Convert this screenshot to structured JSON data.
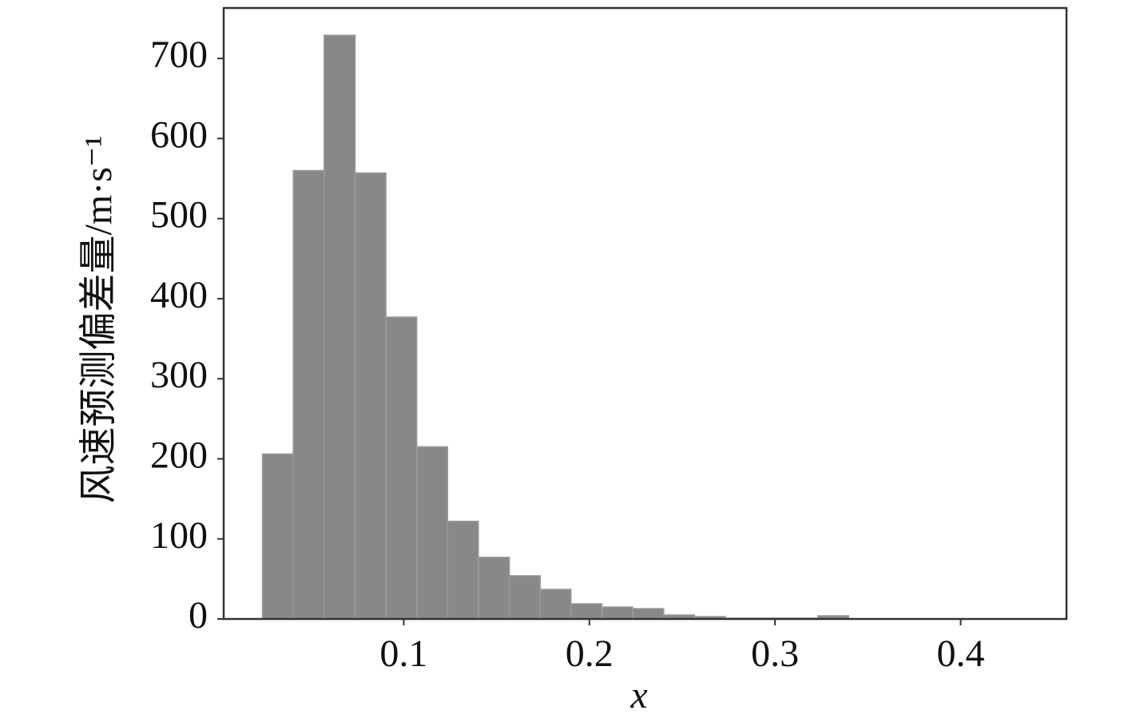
{
  "chart_data": {
    "type": "histogram",
    "x_label": "x",
    "y_label": "风速预测偏差量/m·s⁻¹",
    "bins": [
      0.0239,
      0.0405,
      0.0571,
      0.0738,
      0.0904,
      0.107,
      0.1236,
      0.1402,
      0.1569,
      0.1735,
      0.1901,
      0.2067,
      0.2233,
      0.24,
      0.2566,
      0.2732,
      0.2898,
      0.3064,
      0.3231,
      0.3397
    ],
    "values": [
      206,
      560,
      729,
      557,
      377,
      215,
      122,
      77,
      54,
      37,
      19,
      15,
      13,
      5,
      3,
      1,
      1,
      1,
      4
    ],
    "color": "#888888",
    "xlim": [
      0.003,
      0.457
    ],
    "ylim": [
      0,
      763
    ],
    "xticks": [
      0.1,
      0.2,
      0.3,
      0.4
    ],
    "yticks": [
      0,
      100,
      200,
      300,
      400,
      500,
      600,
      700
    ]
  }
}
